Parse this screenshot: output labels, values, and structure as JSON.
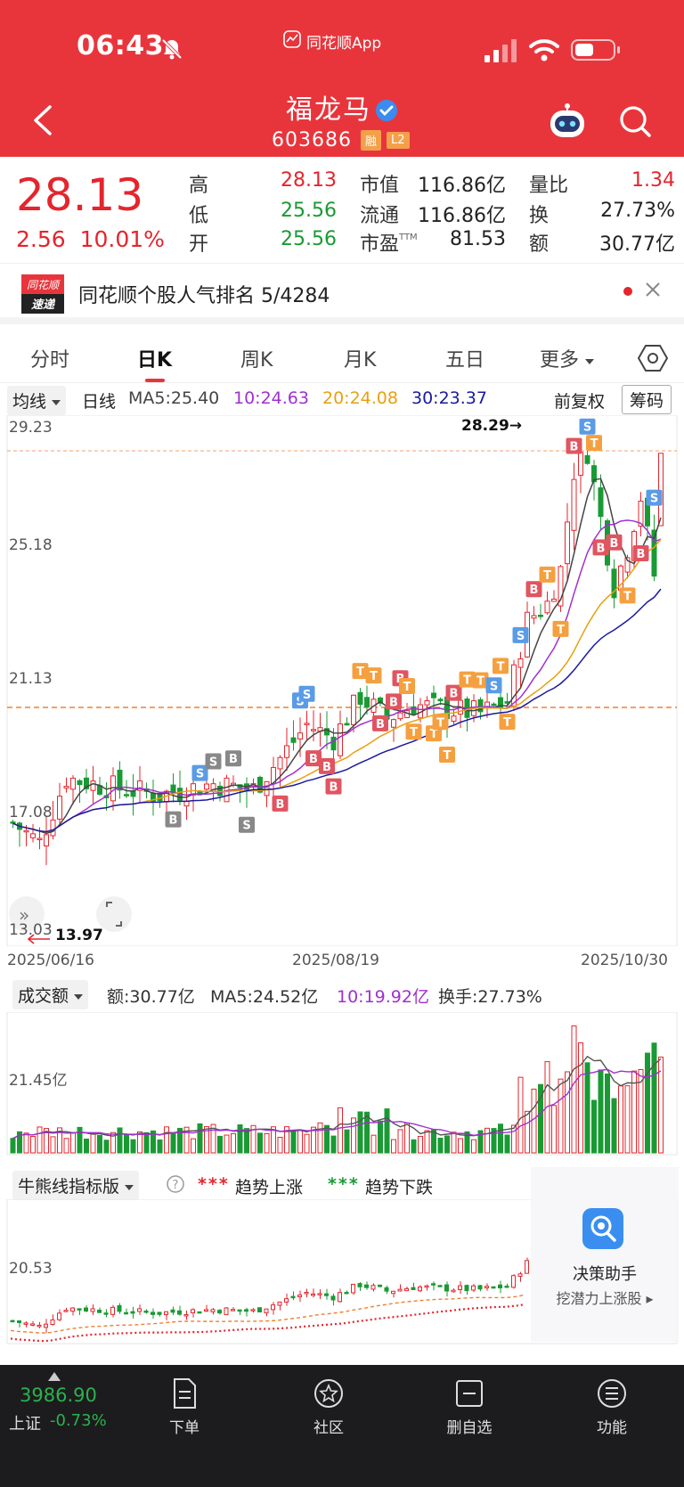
{
  "status": {
    "time": "06:43",
    "app": "同花顺App"
  },
  "stock": {
    "name": "福龙马",
    "code": "603686",
    "tags": [
      "融",
      "L2"
    ]
  },
  "quote": {
    "price": "28.13",
    "change": "2.56",
    "change_pct": "10.01%",
    "items": [
      {
        "label": "高",
        "value": "28.13",
        "color": "red"
      },
      {
        "label": "低",
        "value": "25.56",
        "color": "green"
      },
      {
        "label": "开",
        "value": "25.56",
        "color": "green"
      },
      {
        "label": "市值",
        "value": "116.86亿"
      },
      {
        "label": "流通",
        "value": "116.86亿"
      },
      {
        "label": "市盈",
        "value": "81.53",
        "sup": "TTM"
      },
      {
        "label": "量比",
        "value": "1.34",
        "color": "red"
      },
      {
        "label": "换",
        "value": "27.73%"
      },
      {
        "label": "额",
        "value": "30.77亿"
      }
    ]
  },
  "banner": {
    "logo_top": "同花顺",
    "logo_bottom": "速递",
    "text": "同花顺个股人气排名 5/4284"
  },
  "tabs": [
    {
      "label": "分时"
    },
    {
      "label": "日K",
      "active": true
    },
    {
      "label": "周K"
    },
    {
      "label": "月K"
    },
    {
      "label": "五日"
    },
    {
      "label": "更多"
    }
  ],
  "ma": {
    "selector": "均线",
    "period": "日线",
    "items": [
      {
        "text": "MA5:25.40",
        "color": "#444444"
      },
      {
        "text": "10:24.63",
        "color": "#a030d0"
      },
      {
        "text": "20:24.08",
        "color": "#e8a010"
      },
      {
        "text": "30:23.37",
        "color": "#1a1aa0"
      }
    ],
    "adjust": "前复权",
    "chip": "筹码"
  },
  "kline": {
    "y_labels": [
      "29.23",
      "25.18",
      "21.13",
      "17.08",
      "13.03"
    ],
    "high_marker": "28.29→",
    "low_marker": "13.97",
    "dates": [
      "2025/06/16",
      "2025/08/19",
      "2025/10/30"
    ]
  },
  "volume": {
    "selector": "成交额",
    "items": [
      {
        "text": "额:30.77亿",
        "color": "#333333"
      },
      {
        "text": "MA5:24.52亿",
        "color": "#333333"
      },
      {
        "text": "10:19.92亿",
        "color": "#a030d0"
      },
      {
        "text": "换手:27.73%",
        "color": "#333333"
      }
    ],
    "y_label": "21.45亿"
  },
  "indicator": {
    "selector": "牛熊线指标版",
    "legend_up_stars": "***",
    "legend_up": "趋势上涨",
    "legend_down_stars": "***",
    "legend_down": "趋势下跌",
    "y_label": "20.53",
    "assistant_title": "决策助手",
    "assistant_sub": "挖潜力上涨股 ▸"
  },
  "bottom": {
    "index_value": "3986.90",
    "index_name": "上证",
    "index_change": "-0.73%",
    "nav": [
      {
        "label": "下单"
      },
      {
        "label": "社区"
      },
      {
        "label": "删自选"
      },
      {
        "label": "功能"
      }
    ]
  },
  "colors": {
    "header": "#e8353c",
    "up": "#e4252d",
    "down": "#1a9a34"
  }
}
